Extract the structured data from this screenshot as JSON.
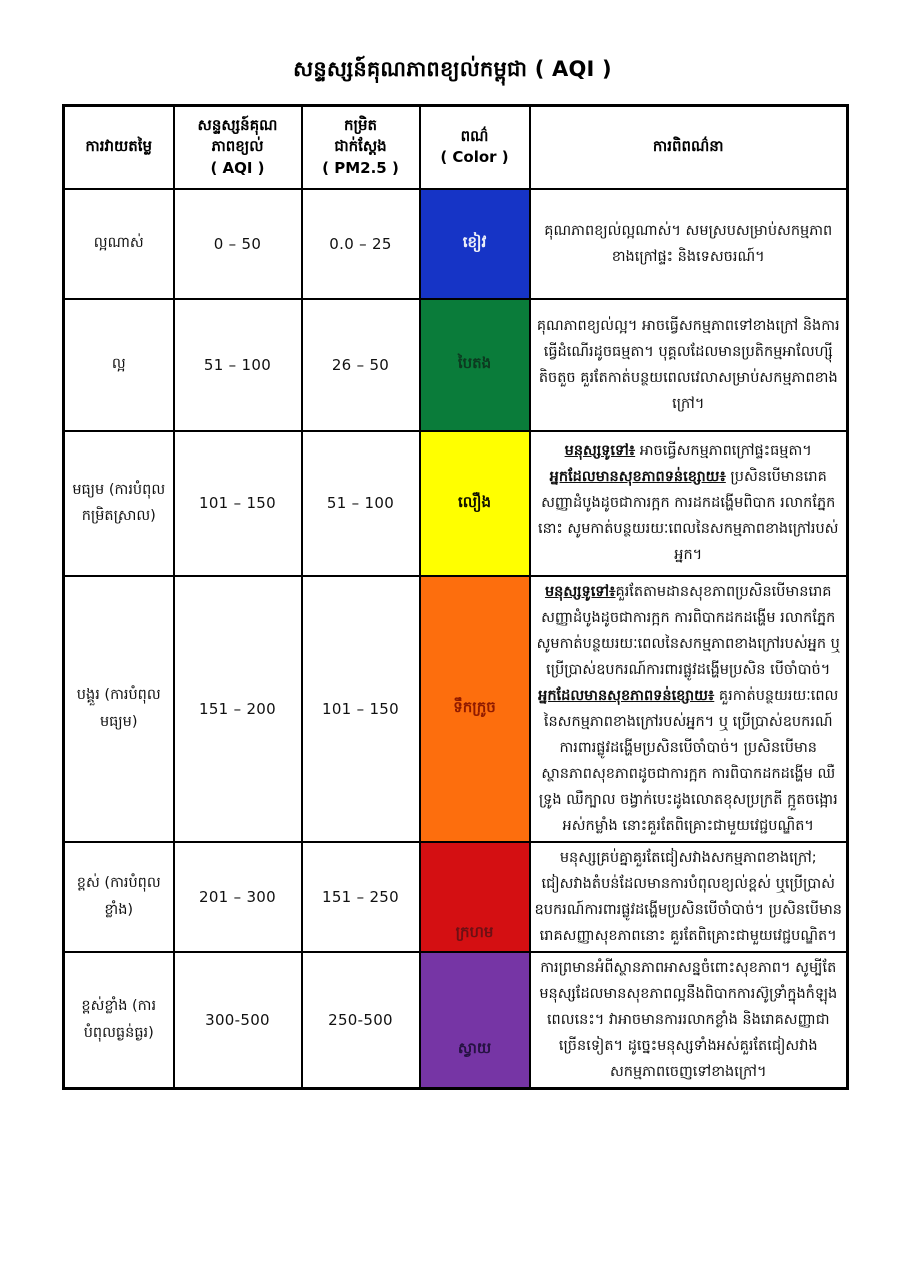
{
  "page": {
    "title": "សន្ទស្សន៍គុណភាពខ្យល់កម្ពុជា ( AQI )"
  },
  "table": {
    "headers": {
      "rating": "ការវាយតម្លៃ",
      "aqi_line1": "សន្ទស្សន៍គុណ",
      "aqi_line2": "ភាពខ្យល់",
      "aqi_line3": "( AQI )",
      "pm_line1": "កម្រិត",
      "pm_line2": "ជាក់ស្តែង",
      "pm_line3": "( PM2.5 )",
      "color_line1": "ពណ៌",
      "color_line2": "( Color )",
      "description": "ការពិពណ៌នា"
    },
    "rows": [
      {
        "rating": "ល្អណាស់",
        "aqi": "0 – 50",
        "pm25": "0.0 – 25",
        "color_name": "ខៀវ",
        "color_hex": "#1634c6",
        "label_color": "#edeff8",
        "desc": [
          [
            {
              "text": "គុណភាពខ្យល់ល្អណាស់។ សមស្របសម្រាប់សកម្មភាពខាងក្រៅផ្ទះ និងទេសចរណ៍។",
              "em": false
            }
          ]
        ]
      },
      {
        "rating": "ល្អ",
        "aqi": "51 – 100",
        "pm25": "26 – 50",
        "color_name": "បៃតង",
        "color_hex": "#0a7c3a",
        "label_color": "#0c3a20",
        "desc": [
          [
            {
              "text": "គុណភាពខ្យល់ល្អ។ អាចធ្វើសកម្មភាពទៅខាងក្រៅ និងការធ្វើដំណើរដូចធម្មតា។ បុគ្គលដែលមានប្រតិកម្មអាលែហ្ស៊ីតិចតួច គួរតែកាត់បន្ថយពេលវេលាសម្រាប់សកម្មភាពខាងក្រៅ។",
              "em": false
            }
          ]
        ]
      },
      {
        "rating": "មធ្យម (ការបំពុលកម្រិតស្រាល)",
        "aqi": "101 – 150",
        "pm25": "51 – 100",
        "color_name": "លឿង",
        "color_hex": "#ffff00",
        "label_color": "#121200",
        "desc": [
          [
            {
              "text": "មនុស្សទូទៅ៖",
              "em": true
            },
            {
              "text": " អាចធ្វើសកម្មភាពក្រៅផ្ទះធម្មតា។",
              "em": false
            }
          ],
          [
            {
              "text": "អ្នកដែលមានសុខភាពទន់ខ្សោយ៖",
              "em": true
            },
            {
              "text": " ប្រសិនបើមានរោគសញ្ញាដំបូងដូចជាការក្អក ការដកដង្ហើមពិបាក រលាកភ្នែកនោះ សូមកាត់បន្ថយរយៈពេលនៃសកម្មភាពខាងក្រៅរបស់អ្នក។",
              "em": false
            }
          ]
        ]
      },
      {
        "rating": "បង្គួរ (ការបំពុលមធ្យម)",
        "aqi": "151 – 200",
        "pm25": "101 – 150",
        "color_name": "ទឹកក្រូច",
        "color_hex": "#fd6e0d",
        "label_color": "#8f1a00",
        "desc": [
          [
            {
              "text": "មនុស្សទូទៅ៖",
              "em": true
            },
            {
              "text": "គួរតែតាមដានសុខភាពប្រសិនបើមានរោគសញ្ញាដំបូងដូចជាការក្អក ការពិបាកដកដង្ហើម រលាកភ្នែក សូមកាត់បន្ថយរយៈពេលនៃសកម្មភាពខាងក្រៅរបស់អ្នក ឬប្រើប្រាស់ឧបករណ៍ការពារផ្លូវដង្ហើមប្រសិន បើចាំបាច់។",
              "em": false
            }
          ],
          [
            {
              "text": "អ្នកដែលមានសុខភាពទន់ខ្សោយ៖",
              "em": true
            },
            {
              "text": " គួរកាត់បន្ថយរយៈពេលនៃសកម្មភាពខាងក្រៅរបស់អ្នក។ ឬ ប្រើប្រាស់ឧបករណ៍ការពារផ្លូវដង្ហើមប្រសិនបើចាំបាច់។ ប្រសិនបើមានស្ថានភាពសុខភាពដូចជាការក្អក ការពិបាកដកដង្ហើម ឈឺទ្រូង ឈឺក្បាល ចង្វាក់បេះដូងលោតខុសប្រក្រតី ក្អួតចង្អោរ អស់កម្លាំង នោះគួរតែពិគ្រោះជាមួយវេជ្ជបណ្ឌិត។",
              "em": false
            }
          ]
        ]
      },
      {
        "rating": "ខ្ពស់ (ការបំពុលខ្លាំង)",
        "aqi": "201 – 300",
        "pm25": "151 – 250",
        "color_name": "ក្រហម",
        "color_hex": "#d40f12",
        "label_color": "#6d1014",
        "desc": [
          [
            {
              "text": "មនុស្សគ្រប់គ្នាគួរតែជៀសវាងសកម្មភាពខាងក្រៅ; ជៀសវាងតំបន់ដែលមានការបំពុលខ្យល់ខ្ពស់ ឬប្រើប្រាស់ឧបករណ៍ការពារផ្លូវដង្ហើមប្រសិនបើចាំបាច់។ ប្រសិនបើមានរោគសញ្ញាសុខភាពនោះ គួរតែពិគ្រោះជាមួយវេជ្ជបណ្ឌិត។",
              "em": false
            }
          ]
        ]
      },
      {
        "rating": "ខ្ពស់ខ្លាំង (ការបំពុលធ្ងន់ធ្ងរ)",
        "aqi": "300-500",
        "pm25": "250-500",
        "color_name": "ស្វាយ",
        "color_hex": "#7635a5",
        "label_color": "#261243",
        "desc": [
          [
            {
              "text": "ការព្រមានអំពីស្ថានភាពអាសន្នចំពោះសុខភាព។ សូម្បីតែមនុស្សដែលមានសុខភាពល្អនឹងពិបាកការស៊ូទ្រាំក្នុងកំឡុងពេលនេះ។ វាអាចមានការរលាកខ្លាំង និងរោគសញ្ញាជាច្រើនទៀត។ ដូច្នេះមនុស្សទាំងអស់គួរតែជៀសវាងសកម្មភាពចេញទៅខាងក្រៅ។",
              "em": false
            }
          ]
        ]
      }
    ]
  }
}
